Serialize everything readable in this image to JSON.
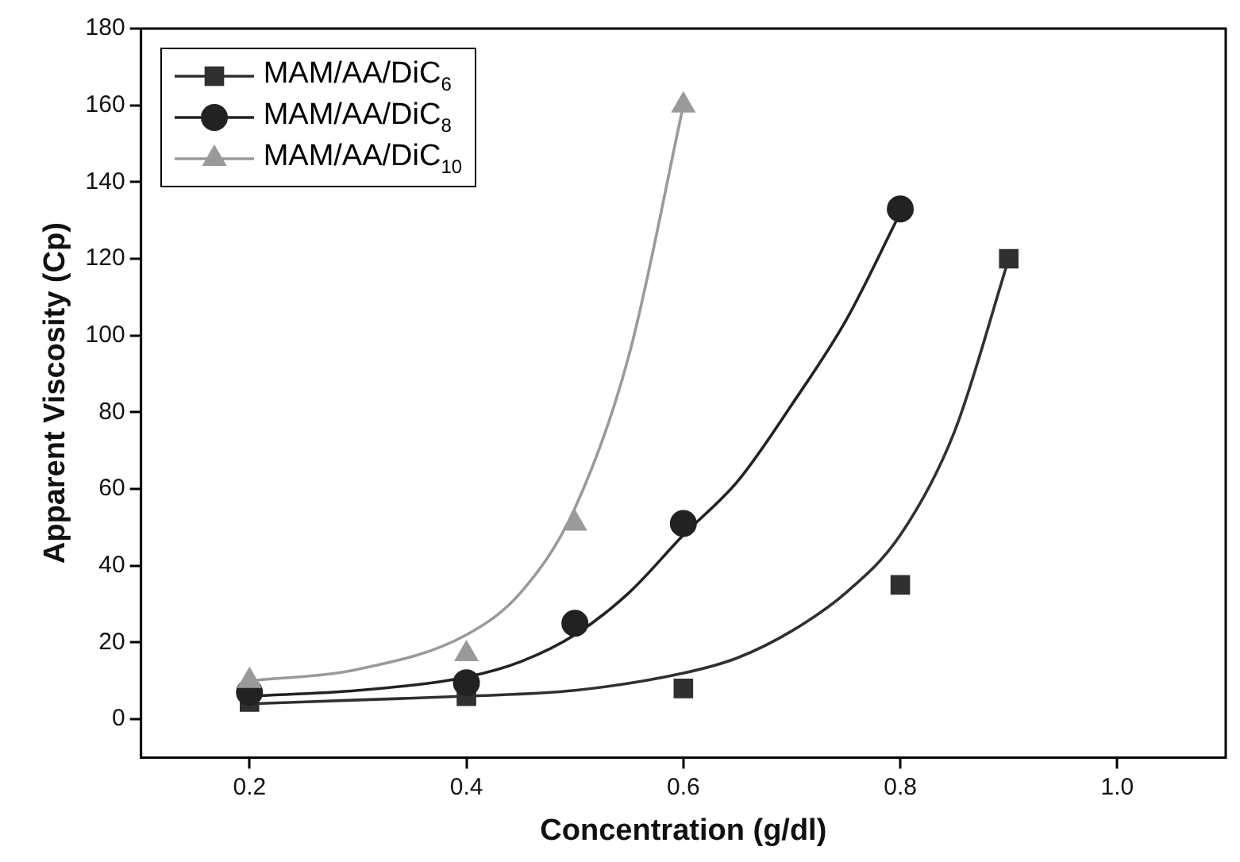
{
  "chart_data": {
    "type": "scatter",
    "xlabel": "Concentration (g/dl)",
    "ylabel": "Apparent Viscosity (Cp)",
    "xlim": [
      0.1,
      1.1
    ],
    "xticks": [
      {
        "value": 0.2,
        "label": "0.2"
      },
      {
        "value": 0.4,
        "label": "0.4"
      },
      {
        "value": 0.6,
        "label": "0.6"
      },
      {
        "value": 0.8,
        "label": "0.8"
      },
      {
        "value": 1.0,
        "label": "1.0"
      }
    ],
    "ylim": [
      -10,
      180
    ],
    "yticks": [
      0,
      20,
      40,
      60,
      80,
      100,
      120,
      140,
      160,
      180
    ],
    "grid": false,
    "legend": "top left",
    "series": [
      {
        "name": "MAM/AA/DiC$_{6}$",
        "marker": "square",
        "color": "#303030",
        "x": [
          0.2,
          0.4,
          0.6,
          0.8,
          0.9
        ],
        "values": [
          4.5,
          6,
          8,
          35,
          120
        ]
      },
      {
        "name": "MAM/AA/DiC$_{8}$",
        "marker": "circle",
        "color": "#222222",
        "x": [
          0.2,
          0.4,
          0.5,
          0.6,
          0.8
        ],
        "values": [
          7,
          9.5,
          25,
          51,
          133
        ]
      },
      {
        "name": "MAM/AA/DiC$_{10}$",
        "marker": "triangle",
        "color": "#9a9a9a",
        "x": [
          0.2,
          0.4,
          0.5,
          0.6
        ],
        "values": [
          10,
          17,
          51,
          160
        ]
      },
      {
        "type": "line",
        "color": "#303030",
        "x": [
          0.2,
          0.3,
          0.4,
          0.5,
          0.6,
          0.65,
          0.7,
          0.75,
          0.8,
          0.85,
          0.9
        ],
        "values": [
          4,
          5,
          6,
          7.5,
          12,
          16,
          23,
          33,
          48,
          75,
          120
        ]
      },
      {
        "type": "line",
        "color": "#222222",
        "x": [
          0.2,
          0.3,
          0.4,
          0.45,
          0.5,
          0.55,
          0.6,
          0.65,
          0.7,
          0.75,
          0.8
        ],
        "values": [
          6,
          7.5,
          11,
          15,
          22,
          33,
          48,
          62,
          82,
          104,
          132
        ]
      },
      {
        "type": "line",
        "color": "#9a9a9a",
        "x": [
          0.2,
          0.3,
          0.4,
          0.45,
          0.5,
          0.55,
          0.6
        ],
        "values": [
          10,
          13,
          22,
          33,
          55,
          95,
          160
        ]
      }
    ]
  }
}
